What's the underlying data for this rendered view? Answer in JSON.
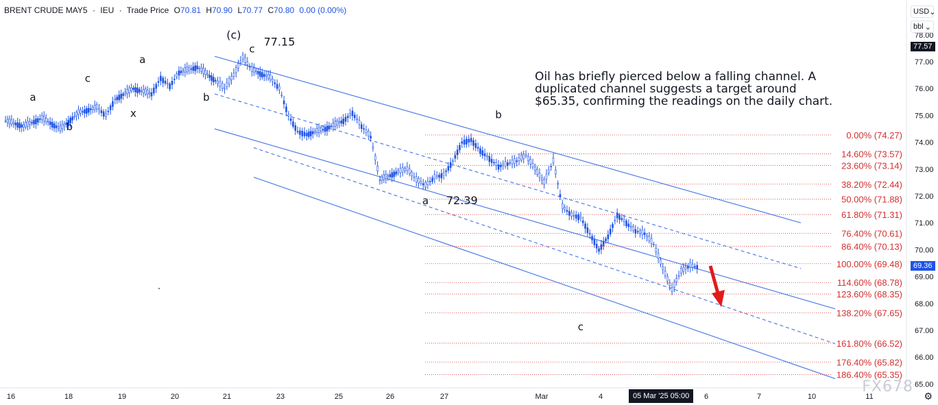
{
  "header": {
    "symbol": "BRENT CRUDE MAY5",
    "sep1": "·",
    "exchange": "IEU",
    "sep2": "·",
    "price_type": "Trade Price",
    "open_label": "O",
    "open": "70.81",
    "high_label": "H",
    "high": "70.90",
    "low_label": "L",
    "low": "70.77",
    "close_label": "C",
    "close": "70.80",
    "change": "0.00 (0.00%)"
  },
  "controls": {
    "currency": "USD",
    "unit": "bbl"
  },
  "annotation_text": "Oil has briefly pierced below a falling channel. A duplicated channel suggests a target around $65.35, confirming the readings on the daily chart.",
  "price_labels": {
    "cursor": "77.57",
    "last": "69.36"
  },
  "date_highlight": "05 Mar '25  05:00",
  "watermark": "FX678",
  "colors": {
    "up": "#1e53e5",
    "channel": "#4f7de8",
    "fib": "#d32f2f",
    "arrow": "#e21b1b",
    "text": "#131722"
  },
  "chart_data": {
    "type": "candlestick",
    "ylim": [
      65,
      78
    ],
    "y_ticks": [
      "78.00",
      "77.00",
      "76.00",
      "75.00",
      "74.00",
      "73.00",
      "72.00",
      "71.00",
      "70.00",
      "69.00",
      "68.00",
      "67.00",
      "66.00",
      "65.00"
    ],
    "x_ticks": [
      "16",
      "18",
      "19",
      "20",
      "21",
      "23",
      "25",
      "26",
      "27",
      "Mar",
      "4",
      "6",
      "7",
      "10",
      "11"
    ],
    "path": [
      [
        0,
        74.8
      ],
      [
        2,
        74.6
      ],
      [
        4,
        74.9
      ],
      [
        6,
        74.5
      ],
      [
        8,
        75.1
      ],
      [
        10,
        75.3
      ],
      [
        11,
        75.0
      ],
      [
        12,
        75.6
      ],
      [
        14,
        76.0
      ],
      [
        16,
        75.8
      ],
      [
        17,
        76.4
      ],
      [
        18,
        76.1
      ],
      [
        19,
        76.6
      ],
      [
        21,
        76.8
      ],
      [
        23,
        76.3
      ],
      [
        24,
        76.0
      ],
      [
        25,
        76.5
      ],
      [
        26,
        77.15
      ],
      [
        27,
        76.7
      ],
      [
        29,
        76.4
      ],
      [
        30,
        76.0
      ],
      [
        31,
        75.0
      ],
      [
        32,
        74.4
      ],
      [
        33,
        74.3
      ],
      [
        35,
        74.5
      ],
      [
        37,
        74.8
      ],
      [
        38,
        75.1
      ],
      [
        39,
        74.6
      ],
      [
        40,
        74.2
      ],
      [
        41,
        72.6
      ],
      [
        43,
        72.9
      ],
      [
        44,
        73.0
      ],
      [
        45,
        72.6
      ],
      [
        46,
        72.39
      ],
      [
        47,
        72.7
      ],
      [
        48,
        72.8
      ],
      [
        49,
        73.3
      ],
      [
        50,
        74.0
      ],
      [
        51,
        74.1
      ],
      [
        52,
        73.7
      ],
      [
        53,
        73.4
      ],
      [
        54,
        73.1
      ],
      [
        55,
        73.2
      ],
      [
        56,
        73.3
      ],
      [
        57,
        73.5
      ],
      [
        58,
        73.0
      ],
      [
        59,
        72.5
      ],
      [
        60,
        73.3
      ],
      [
        61,
        71.6
      ],
      [
        62,
        71.3
      ],
      [
        63,
        71.2
      ],
      [
        64,
        70.6
      ],
      [
        65,
        70.0
      ],
      [
        66,
        70.5
      ],
      [
        67,
        71.3
      ],
      [
        68,
        71.0
      ],
      [
        69,
        70.7
      ],
      [
        70,
        70.6
      ],
      [
        71,
        70.2
      ],
      [
        72,
        69.3
      ],
      [
        73,
        68.5
      ],
      [
        74,
        69.2
      ],
      [
        75,
        69.4
      ],
      [
        76,
        69.36
      ]
    ],
    "wave_labels": [
      {
        "text": "a",
        "i": 3,
        "y": 75.55
      },
      {
        "text": "b",
        "i": 7,
        "y": 74.45
      },
      {
        "text": "c",
        "i": 9,
        "y": 76.25
      },
      {
        "text": "x",
        "i": 14,
        "y": 74.95
      },
      {
        "text": "a",
        "i": 15,
        "y": 76.95
      },
      {
        "text": "b",
        "i": 22,
        "y": 75.55
      },
      {
        "text": "(c)",
        "i": 25,
        "y": 77.85
      },
      {
        "text": "c",
        "i": 27,
        "y": 77.35
      },
      {
        "text": "77.15",
        "i": 30,
        "y": 77.6
      },
      {
        "text": "a",
        "i": 46,
        "y": 71.7
      },
      {
        "text": "72.39",
        "i": 50,
        "y": 71.7
      },
      {
        "text": "b",
        "i": 54,
        "y": 74.9
      },
      {
        "text": "c",
        "i": 63,
        "y": 67.0
      }
    ],
    "fib_levels": [
      {
        "label": "0.00% (74.27)",
        "value": 74.27
      },
      {
        "label": "14.60% (73.57)",
        "value": 73.57
      },
      {
        "label": "23.60% (73.14)",
        "value": 73.14
      },
      {
        "label": "38.20% (72.44)",
        "value": 72.44
      },
      {
        "label": "50.00% (71.88)",
        "value": 71.88
      },
      {
        "label": "61.80% (71.31)",
        "value": 71.31
      },
      {
        "label": "76.40% (70.61)",
        "value": 70.61
      },
      {
        "label": "86.40% (70.13)",
        "value": 70.13
      },
      {
        "label": "100.00% (69.48)",
        "value": 69.48
      },
      {
        "label": "114.60% (68.78)",
        "value": 68.78
      },
      {
        "label": "123.60% (68.35)",
        "value": 68.35
      },
      {
        "label": "138.20% (67.65)",
        "value": 67.65
      },
      {
        "label": "161.80% (66.52)",
        "value": 66.52
      },
      {
        "label": "176.40% (65.82)",
        "value": 65.82
      },
      {
        "label": "186.40% (65.35)",
        "value": 65.35
      }
    ]
  }
}
